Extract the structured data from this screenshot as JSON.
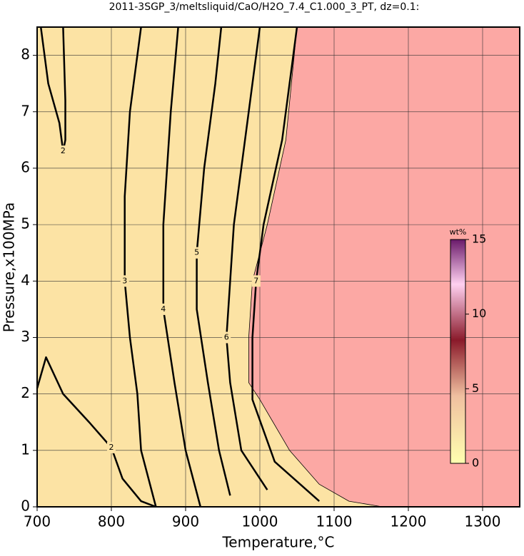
{
  "chart_data": {
    "type": "contour",
    "title": "2011-3SGP_3/meltsliquid/CaO/H2O_7.4_C1.000_3_PT, dz=0.1:",
    "x_label": "Temperature,°C",
    "y_label": "Pressure,x100MPa",
    "xlim": [
      700,
      1350
    ],
    "ylim": [
      0,
      8.5
    ],
    "xticks": [
      700,
      800,
      900,
      1000,
      1100,
      1200,
      1300
    ],
    "yticks": [
      0,
      1,
      2,
      3,
      4,
      5,
      6,
      7,
      8
    ],
    "grid": true,
    "background": "#fce3a4",
    "line_color": "#000000",
    "saturated_region": {
      "color": "#fca8a4",
      "x": [
        1165,
        1120,
        1080,
        1040,
        1000,
        985,
        985,
        990,
        1010,
        1035,
        1050
      ],
      "y": [
        0,
        0.1,
        0.4,
        1,
        1.9,
        2.2,
        3,
        4,
        5,
        6.5,
        8.5
      ]
    },
    "series": [
      {
        "name": "2",
        "x": [
          700,
          712,
          735,
          770,
          800,
          815,
          840,
          860
        ],
        "y": [
          2.1,
          2.65,
          2,
          1.5,
          1.05,
          0.5,
          0.1,
          0
        ]
      },
      {
        "name": "2",
        "x": [
          705,
          715,
          730,
          735,
          738,
          738,
          735
        ],
        "y": [
          8.5,
          7.5,
          6.8,
          6.3,
          6.5,
          7.2,
          8.5
        ]
      },
      {
        "name": "3",
        "x": [
          860,
          840,
          835,
          825,
          818,
          818,
          825,
          840
        ],
        "y": [
          0,
          1,
          2,
          3,
          4,
          5.5,
          7,
          8.5
        ]
      },
      {
        "name": "4",
        "x": [
          920,
          900,
          885,
          870,
          870,
          880,
          890
        ],
        "y": [
          0,
          1,
          2.2,
          3.5,
          5,
          7,
          8.5
        ]
      },
      {
        "name": "5",
        "x": [
          960,
          945,
          930,
          915,
          915,
          925,
          940,
          948
        ],
        "y": [
          0.2,
          1,
          2.2,
          3.5,
          4.5,
          6,
          7.5,
          8.5
        ]
      },
      {
        "name": "6",
        "x": [
          1010,
          975,
          960,
          955,
          965,
          990,
          1000
        ],
        "y": [
          0.3,
          1,
          2.2,
          3,
          5,
          7.5,
          8.5
        ]
      },
      {
        "name": "7",
        "x": [
          1080,
          1020,
          990,
          990,
          995,
          1005,
          1030,
          1050
        ],
        "y": [
          0.1,
          0.8,
          1.9,
          3,
          4,
          5,
          6.5,
          8.5
        ]
      }
    ],
    "colorbar": {
      "label": "wt%",
      "lim": [
        0,
        15
      ],
      "ticks": [
        0,
        5,
        10,
        15
      ]
    }
  }
}
